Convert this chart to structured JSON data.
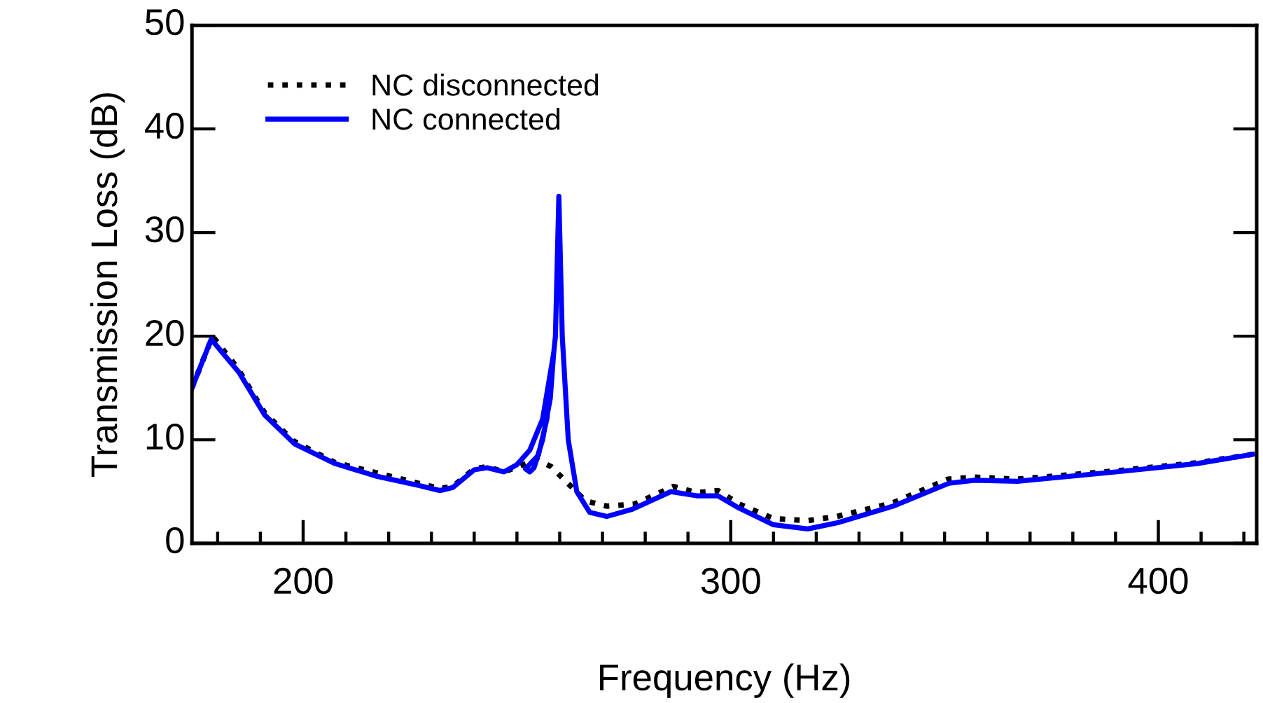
{
  "chart_data": {
    "type": "line",
    "xlabel": "Frequency (Hz)",
    "ylabel": "Transmission Loss (dB)",
    "xlim": [
      174,
      423
    ],
    "xticks": [
      200,
      300,
      400
    ],
    "ylim": [
      0,
      50
    ],
    "yticks": [
      0,
      10,
      20,
      30,
      40,
      50
    ],
    "grid": false,
    "legend": "top left",
    "marker": "none",
    "series": [
      {
        "name": "NC disconnected",
        "color": "#000000",
        "line_style": "dotted",
        "x": [
          174,
          178.8,
          184.7,
          191,
          197.7,
          207.5,
          217.3,
          227,
          232,
          235,
          240,
          243,
          247,
          251.5,
          254.7,
          258,
          262.9,
          266,
          271,
          277.5,
          286.6,
          292,
          297,
          302,
          310,
          318,
          324.8,
          337.8,
          350.8,
          357,
          367,
          390,
          409.4,
          422
        ],
        "values": [
          15,
          20,
          16.9,
          12.6,
          9.9,
          7.8,
          6.8,
          5.8,
          5.3,
          5.5,
          7.2,
          7.4,
          6.9,
          7.6,
          8.1,
          7.4,
          5.4,
          4.1,
          3.6,
          3.8,
          5.5,
          4.9,
          5.1,
          3.8,
          2.4,
          2.2,
          2.6,
          3.9,
          6.2,
          6.4,
          6.2,
          7.0,
          7.8,
          8.6
        ]
      },
      {
        "name": "NC connected",
        "color": "#0000ff",
        "line_style": "solid",
        "x": [
          174,
          178.5,
          185,
          191,
          198,
          207.5,
          217,
          227,
          232,
          235,
          240,
          243,
          247,
          250,
          253,
          256,
          258.6,
          257.8,
          256,
          254,
          253,
          252,
          255,
          257,
          259,
          259.8,
          260.6,
          262,
          264,
          267,
          271,
          277,
          286,
          292,
          297,
          302,
          310,
          318,
          325,
          338,
          351,
          357,
          367,
          390,
          409,
          422
        ],
        "values": [
          15,
          19.7,
          16.5,
          12.4,
          9.6,
          7.7,
          6.5,
          5.6,
          5.1,
          5.4,
          7.1,
          7.3,
          6.9,
          7.6,
          9,
          12,
          18.4,
          14,
          10,
          7.3,
          6.9,
          7.2,
          8.5,
          12,
          20,
          33.5,
          20,
          10,
          5,
          3,
          2.6,
          3.3,
          5,
          4.6,
          4.6,
          3.4,
          1.8,
          1.4,
          2,
          3.6,
          5.8,
          6.1,
          6.0,
          6.9,
          7.7,
          8.6
        ]
      }
    ]
  }
}
